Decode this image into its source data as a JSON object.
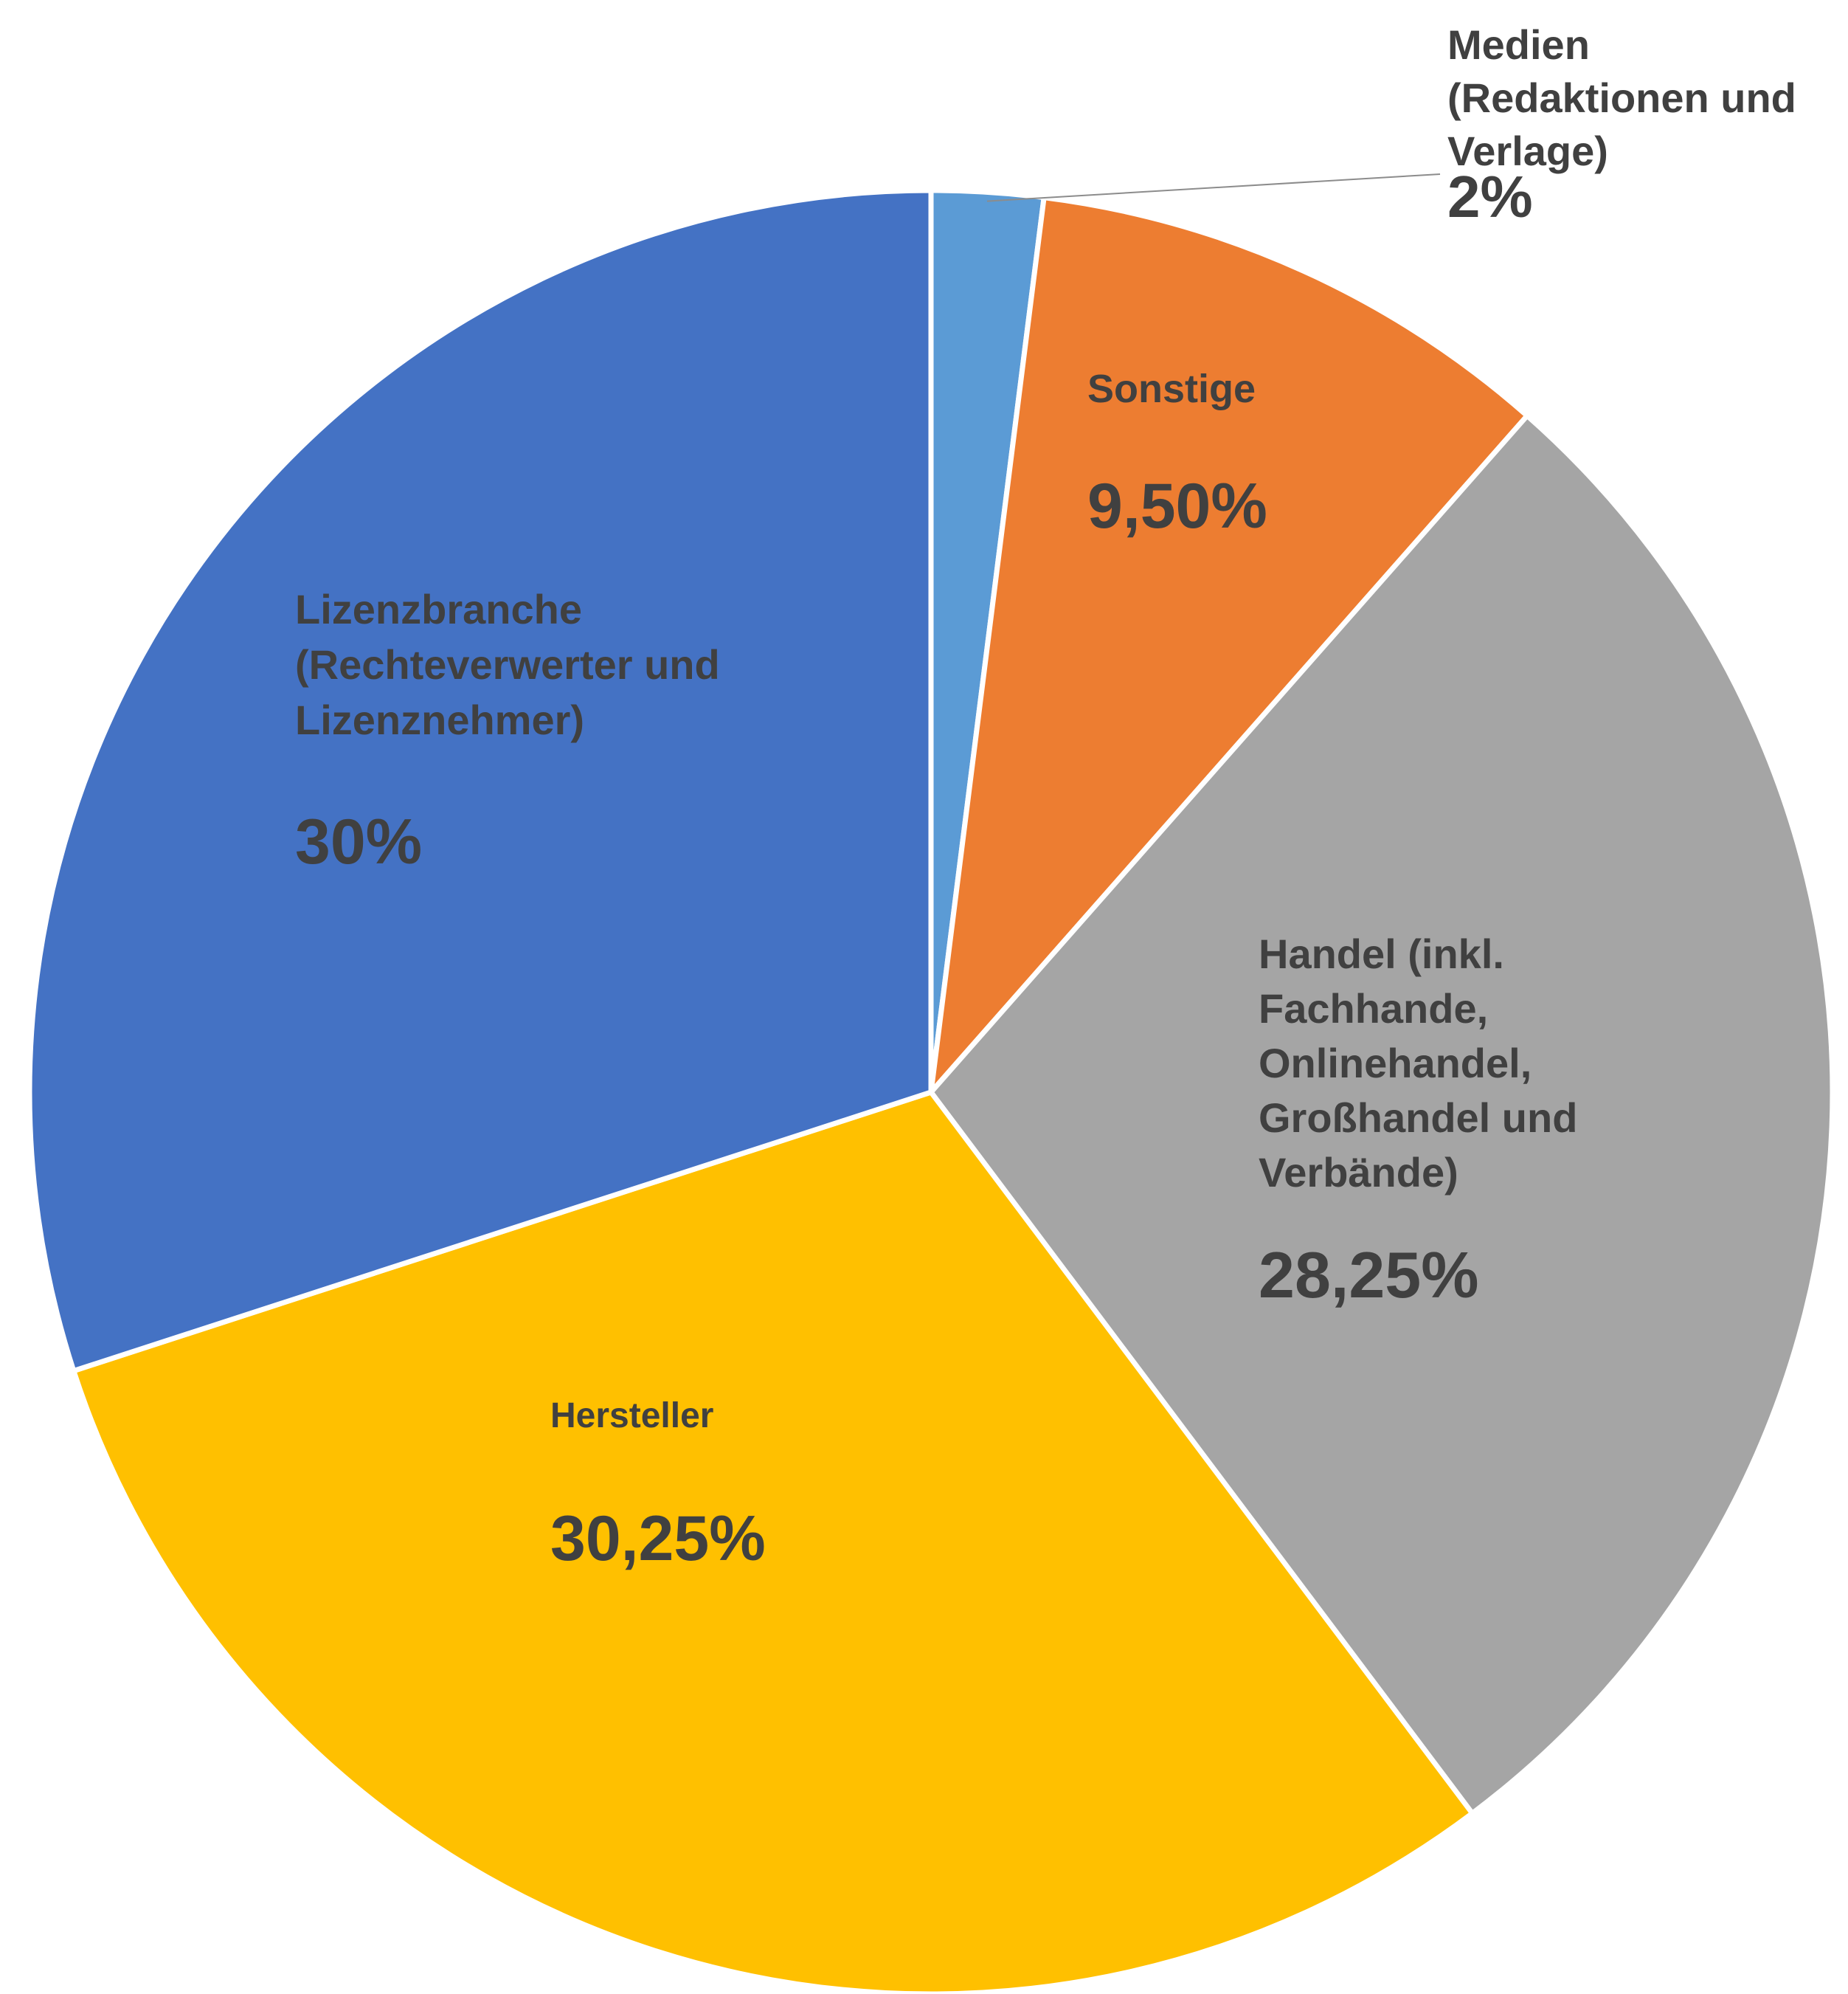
{
  "chart_data": {
    "type": "pie",
    "title": "",
    "start_angle_deg": 0,
    "direction": "clockwise",
    "slices": [
      {
        "label": [
          "Medien",
          "(Redaktionen und",
          "Verlage)"
        ],
        "value_label": "2%",
        "value": 2,
        "color": "#5B9BD5",
        "label_placement": "outside-top-right"
      },
      {
        "label": [
          "Sonstige"
        ],
        "value_label": "9,50%",
        "value": 9.5,
        "color": "#ED7D31"
      },
      {
        "label": [
          "Handel (inkl.",
          "Fachhande,",
          "Onlinehandel,",
          "Großhandel und",
          "Verbände)"
        ],
        "value_label": "28,25%",
        "value": 28.25,
        "color": "#A5A5A5"
      },
      {
        "label": [
          "Hersteller"
        ],
        "value_label": "30,25%",
        "value": 30.25,
        "color": "#FFC000"
      },
      {
        "label": [
          "Lizenzbranche",
          "(Rechteverwerter und",
          "Lizenznehmer)"
        ],
        "value_label": "30%",
        "value": 30,
        "color": "#4472C4"
      }
    ]
  }
}
